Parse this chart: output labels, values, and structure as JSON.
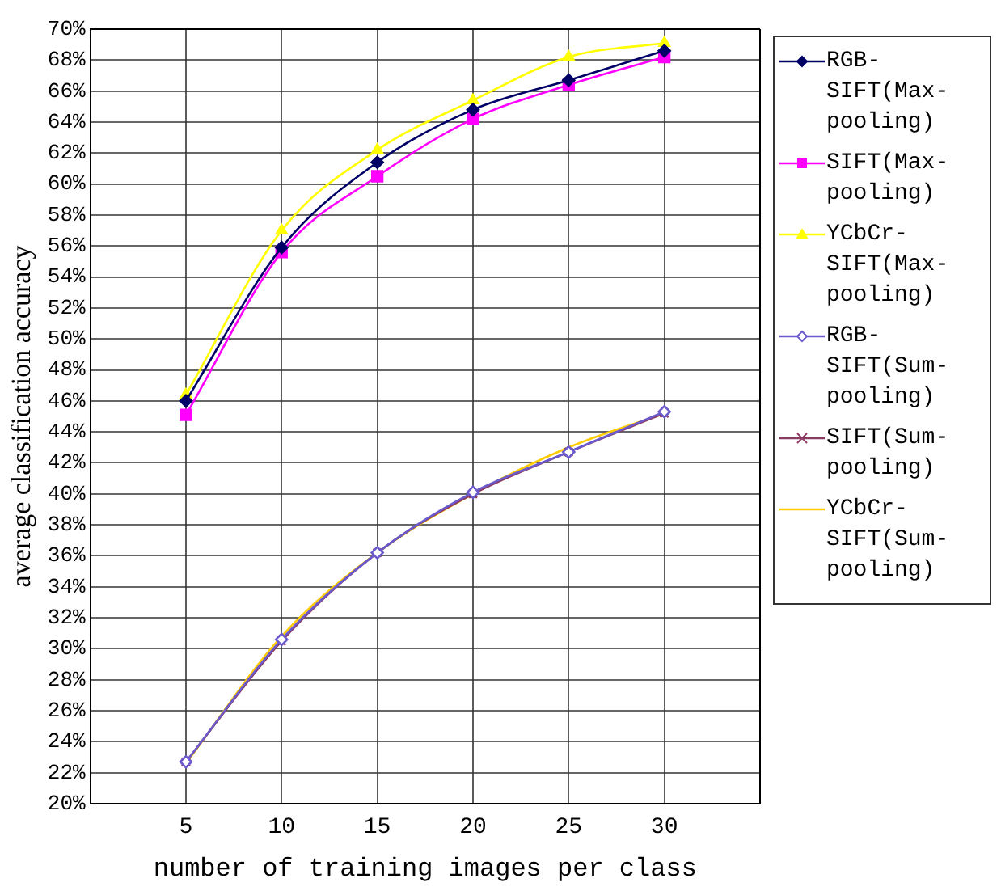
{
  "chart_data": {
    "type": "line",
    "xlabel": "number of training images per class",
    "ylabel": "average classification accuracy",
    "x": [
      5,
      10,
      15,
      20,
      25,
      30
    ],
    "series": [
      {
        "name": "RGB-SIFT(Max-pooling)",
        "color": "#000066",
        "marker": "diamond",
        "values": [
          46.0,
          55.9,
          61.4,
          64.8,
          66.7,
          68.6
        ]
      },
      {
        "name": "SIFT(Max-pooling)",
        "color": "#ff00ff",
        "marker": "square",
        "values": [
          45.1,
          55.6,
          60.5,
          64.2,
          66.4,
          68.2
        ]
      },
      {
        "name": "YCbCr-SIFT(Max-pooling)",
        "color": "#ffff00",
        "marker": "triangle",
        "values": [
          46.4,
          57.0,
          62.2,
          65.4,
          68.2,
          69.1
        ]
      },
      {
        "name": "RGB-SIFT(Sum-pooling)",
        "color": "#6a5acd",
        "marker": "diamond",
        "values": [
          22.7,
          30.6,
          36.2,
          40.1,
          42.7,
          45.3
        ]
      },
      {
        "name": "SIFT(Sum-pooling)",
        "color": "#8b3a62",
        "marker": "cross",
        "values": [
          22.7,
          30.5,
          36.2,
          40.0,
          42.7,
          45.2
        ]
      },
      {
        "name": "YCbCr-SIFT(Sum-pooling)",
        "color": "#ffcc00",
        "marker": "none",
        "values": [
          22.6,
          30.8,
          36.2,
          40.0,
          43.0,
          45.2
        ]
      }
    ],
    "xlim": [
      0,
      35
    ],
    "xticks": [
      5,
      10,
      15,
      20,
      25,
      30
    ],
    "ylim": [
      20,
      70
    ],
    "yticks": [
      {
        "value": 20,
        "label": "20%"
      },
      {
        "value": 22,
        "label": "22%"
      },
      {
        "value": 24,
        "label": "24%"
      },
      {
        "value": 26,
        "label": "26%"
      },
      {
        "value": 28,
        "label": "28%"
      },
      {
        "value": 30,
        "label": "30%"
      },
      {
        "value": 32,
        "label": "32%"
      },
      {
        "value": 34,
        "label": "34%"
      },
      {
        "value": 36,
        "label": "36%"
      },
      {
        "value": 38,
        "label": "38%"
      },
      {
        "value": 40,
        "label": "40%"
      },
      {
        "value": 42,
        "label": "42%"
      },
      {
        "value": 44,
        "label": "44%"
      },
      {
        "value": 46,
        "label": "46%"
      },
      {
        "value": 48,
        "label": "48%"
      },
      {
        "value": 50,
        "label": "50%"
      },
      {
        "value": 52,
        "label": "52%"
      },
      {
        "value": 54,
        "label": "54%"
      },
      {
        "value": 56,
        "label": "56%"
      },
      {
        "value": 58,
        "label": "58%"
      },
      {
        "value": 60,
        "label": "60%"
      },
      {
        "value": 62,
        "label": "62%"
      },
      {
        "value": 64,
        "label": "64%"
      },
      {
        "value": 66,
        "label": "66%"
      },
      {
        "value": 68,
        "label": "68%"
      },
      {
        "value": 70,
        "label": "70%"
      }
    ],
    "grid": true,
    "legend": "right",
    "line_style": "solid"
  }
}
